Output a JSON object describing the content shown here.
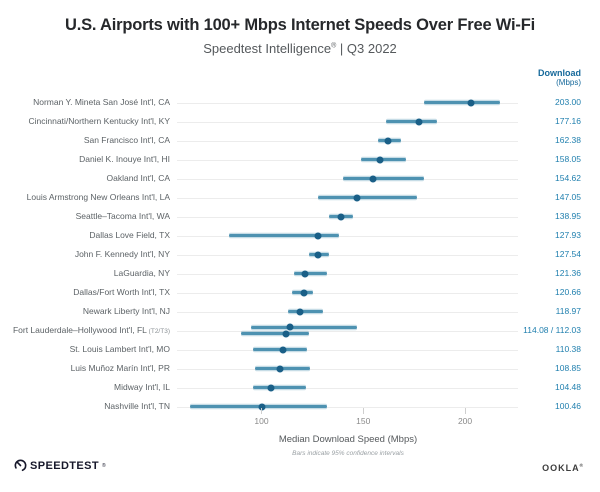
{
  "header": {
    "title": "U.S. Airports with 100+ Mbps Internet Speeds Over Free Wi-Fi",
    "subtitle_brand": "Speedtest Intelligence",
    "subtitle_reg": "®",
    "subtitle_rest": " | Q3 2022"
  },
  "column_header": {
    "line1": "Download",
    "line2": "(Mbps)"
  },
  "chart_data": {
    "type": "scatter",
    "subtype": "dot-with-error-bars",
    "title": "U.S. Airports with 100+ Mbps Internet Speeds Over Free Wi-Fi",
    "subtitle": "Speedtest Intelligence® | Q3 2022",
    "xlabel": "Median Download Speed (Mbps)",
    "note": "Bars indicate 95% confidence intervals",
    "value_column_header": "Download (Mbps)",
    "axis": {
      "min": 58,
      "max": 227,
      "ticks": [
        100,
        150,
        200
      ],
      "tick_labels": [
        "100",
        "150",
        "200"
      ]
    },
    "legend_position": "none",
    "grid": "row-leader-lines",
    "rows": [
      {
        "label": "Norman Y. Mineta San José Int'l, CA",
        "value_text": "203.00",
        "points": [
          {
            "v": 203.0,
            "lo": 180,
            "hi": 217
          }
        ]
      },
      {
        "label": "Cincinnati/Northern Kentucky Int'l, KY",
        "value_text": "177.16",
        "points": [
          {
            "v": 177.16,
            "lo": 161,
            "hi": 186
          }
        ]
      },
      {
        "label": "San Francisco Int'l, CA",
        "value_text": "162.38",
        "points": [
          {
            "v": 162.38,
            "lo": 157,
            "hi": 168.5
          }
        ]
      },
      {
        "label": "Daniel K. Inouye Int'l, HI",
        "value_text": "158.05",
        "points": [
          {
            "v": 158.05,
            "lo": 149,
            "hi": 171
          }
        ]
      },
      {
        "label": "Oakland Int'l, CA",
        "value_text": "154.62",
        "points": [
          {
            "v": 154.62,
            "lo": 140,
            "hi": 180
          }
        ]
      },
      {
        "label": "Louis Armstrong New Orleans Int'l, LA",
        "value_text": "147.05",
        "points": [
          {
            "v": 147.05,
            "lo": 128,
            "hi": 176.5
          }
        ]
      },
      {
        "label": "Seattle–Tacoma Int'l, WA",
        "value_text": "138.95",
        "points": [
          {
            "v": 138.95,
            "lo": 133,
            "hi": 145
          }
        ]
      },
      {
        "label": "Dallas Love Field, TX",
        "value_text": "127.93",
        "points": [
          {
            "v": 127.93,
            "lo": 84,
            "hi": 138
          }
        ]
      },
      {
        "label": "John F. Kennedy Int'l, NY",
        "value_text": "127.54",
        "points": [
          {
            "v": 127.54,
            "lo": 123.5,
            "hi": 133
          }
        ]
      },
      {
        "label": "LaGuardia, NY",
        "value_text": "121.36",
        "points": [
          {
            "v": 121.36,
            "lo": 116,
            "hi": 132
          }
        ]
      },
      {
        "label": "Dallas/Fort Worth Int'l, TX",
        "value_text": "120.66",
        "points": [
          {
            "v": 120.66,
            "lo": 115,
            "hi": 125.5
          }
        ]
      },
      {
        "label": "Newark Liberty Int'l, NJ",
        "value_text": "118.97",
        "points": [
          {
            "v": 118.97,
            "lo": 113,
            "hi": 130
          }
        ]
      },
      {
        "label": "Fort Lauderdale–Hollywood Int'l, FL",
        "label_suffix": "(T2/T3)",
        "value_text": "114.08 / 112.03",
        "points": [
          {
            "v": 114.08,
            "lo": 95,
            "hi": 147
          },
          {
            "v": 112.03,
            "lo": 90,
            "hi": 123.5
          }
        ]
      },
      {
        "label": "St. Louis Lambert Int'l, MO",
        "value_text": "110.38",
        "points": [
          {
            "v": 110.38,
            "lo": 96,
            "hi": 122.5
          }
        ]
      },
      {
        "label": "Luis Muñoz Marín Int'l, PR",
        "value_text": "108.85",
        "points": [
          {
            "v": 108.85,
            "lo": 97,
            "hi": 124
          }
        ]
      },
      {
        "label": "Midway Int'l, IL",
        "value_text": "104.48",
        "points": [
          {
            "v": 104.48,
            "lo": 96,
            "hi": 122
          }
        ]
      },
      {
        "label": "Nashville Int'l, TN",
        "value_text": "100.46",
        "points": [
          {
            "v": 100.46,
            "lo": 65,
            "hi": 132
          }
        ]
      }
    ],
    "colors": {
      "dot": "#1a5f87",
      "ci_bar": "#4e92b1",
      "value_text": "#1f7fae",
      "column_header_text": "#16699b",
      "title_text": "#26282b",
      "label_text": "#5c6266",
      "leader_line": "#ececec"
    }
  },
  "axis_labels": {
    "xlabel": "Median Download Speed (Mbps)",
    "note": "Bars indicate 95% confidence intervals"
  },
  "footer": {
    "speedtest_label": "SPEEDTEST",
    "speedtest_tm": "®",
    "ookla_label": "OOKLA",
    "ookla_reg": "®"
  }
}
